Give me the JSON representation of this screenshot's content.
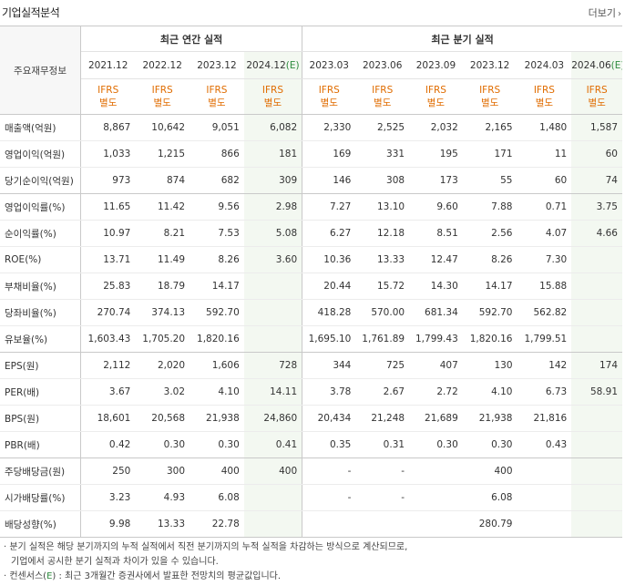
{
  "header": {
    "title": "기업실적분석",
    "more_label": "더보기",
    "more_icon": "chevron-right-icon"
  },
  "table": {
    "row_header_label": "주요재무정보",
    "annual_group_label": "최근 연간 실적",
    "quarterly_group_label": "최근 분기 실적",
    "annual_periods": [
      {
        "label": "2021.12",
        "est": ""
      },
      {
        "label": "2022.12",
        "est": ""
      },
      {
        "label": "2023.12",
        "est": ""
      },
      {
        "label": "2024.12",
        "est": "(E)"
      }
    ],
    "quarter_periods": [
      {
        "label": "2023.03",
        "est": ""
      },
      {
        "label": "2023.06",
        "est": ""
      },
      {
        "label": "2023.09",
        "est": ""
      },
      {
        "label": "2023.12",
        "est": ""
      },
      {
        "label": "2024.03",
        "est": ""
      },
      {
        "label": "2024.06",
        "est": "(E)"
      }
    ],
    "ifrs_line1": "IFRS",
    "ifrs_line2": "별도",
    "rows": [
      {
        "label": "매출액(억원)",
        "values": [
          "8,867",
          "10,642",
          "9,051",
          "6,082",
          "2,330",
          "2,525",
          "2,032",
          "2,165",
          "1,480",
          "1,587"
        ]
      },
      {
        "label": "영업이익(억원)",
        "values": [
          "1,033",
          "1,215",
          "866",
          "181",
          "169",
          "331",
          "195",
          "171",
          "11",
          "60"
        ]
      },
      {
        "label": "당기순이익(억원)",
        "values": [
          "973",
          "874",
          "682",
          "309",
          "146",
          "308",
          "173",
          "55",
          "60",
          "74"
        ]
      },
      {
        "label": "영업이익률(%)",
        "values": [
          "11.65",
          "11.42",
          "9.56",
          "2.98",
          "7.27",
          "13.10",
          "9.60",
          "7.88",
          "0.71",
          "3.75"
        ]
      },
      {
        "label": "순이익률(%)",
        "values": [
          "10.97",
          "8.21",
          "7.53",
          "5.08",
          "6.27",
          "12.18",
          "8.51",
          "2.56",
          "4.07",
          "4.66"
        ]
      },
      {
        "label": "ROE(%)",
        "values": [
          "13.71",
          "11.49",
          "8.26",
          "3.60",
          "10.36",
          "13.33",
          "12.47",
          "8.26",
          "7.30",
          ""
        ]
      },
      {
        "label": "부채비율(%)",
        "values": [
          "25.83",
          "18.79",
          "14.17",
          "",
          "20.44",
          "15.72",
          "14.30",
          "14.17",
          "15.88",
          ""
        ]
      },
      {
        "label": "당좌비율(%)",
        "values": [
          "270.74",
          "374.13",
          "592.70",
          "",
          "418.28",
          "570.00",
          "681.34",
          "592.70",
          "562.82",
          ""
        ]
      },
      {
        "label": "유보율(%)",
        "values": [
          "1,603.43",
          "1,705.20",
          "1,820.16",
          "",
          "1,695.10",
          "1,761.89",
          "1,799.43",
          "1,820.16",
          "1,799.51",
          ""
        ]
      },
      {
        "label": "EPS(원)",
        "values": [
          "2,112",
          "2,020",
          "1,606",
          "728",
          "344",
          "725",
          "407",
          "130",
          "142",
          "174"
        ]
      },
      {
        "label": "PER(배)",
        "values": [
          "3.67",
          "3.02",
          "4.10",
          "14.11",
          "3.78",
          "2.67",
          "2.72",
          "4.10",
          "6.73",
          "58.91"
        ]
      },
      {
        "label": "BPS(원)",
        "values": [
          "18,601",
          "20,568",
          "21,938",
          "24,860",
          "20,434",
          "21,248",
          "21,689",
          "21,938",
          "21,816",
          ""
        ]
      },
      {
        "label": "PBR(배)",
        "values": [
          "0.42",
          "0.30",
          "0.30",
          "0.41",
          "0.35",
          "0.31",
          "0.30",
          "0.30",
          "0.43",
          ""
        ]
      },
      {
        "label": "주당배당금(원)",
        "values": [
          "250",
          "300",
          "400",
          "400",
          "-",
          "-",
          "",
          "400",
          "",
          ""
        ]
      },
      {
        "label": "시가배당률(%)",
        "values": [
          "3.23",
          "4.93",
          "6.08",
          "",
          "-",
          "-",
          "",
          "6.08",
          "",
          ""
        ]
      },
      {
        "label": "배당성향(%)",
        "values": [
          "9.98",
          "13.33",
          "22.78",
          "",
          "",
          "",
          "",
          "280.79",
          "",
          ""
        ]
      }
    ]
  },
  "notes": {
    "line1": "· 분기 실적은 해당 분기까지의 누적 실적에서 직전 분기까지의 누적 실적을 차감하는 방식으로 계산되므로,",
    "line2": "기업에서 공시한 분기 실적과 차이가 있을 수 있습니다.",
    "line3_prefix": "· 컨센서스(",
    "line3_est": "E",
    "line3_suffix": ") : 최근 3개월간 증권사에서 발표한 전망치의 평균값입니다."
  },
  "colors": {
    "ifrs": "#e06c00",
    "estimate": "#2e8b3e",
    "forecast_bg": "#f3f8f1",
    "border": "#c9c9c9"
  }
}
